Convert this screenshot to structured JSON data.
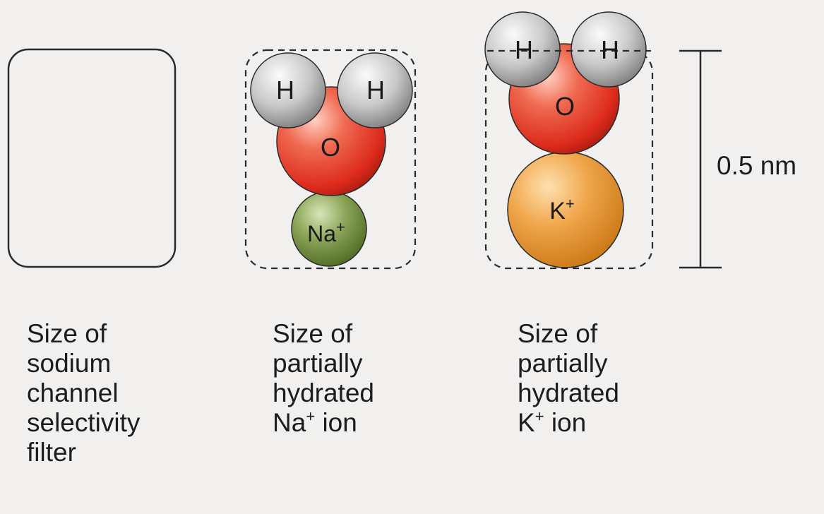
{
  "atoms": {
    "hydrogen": "H",
    "oxygen": "O",
    "sodium_symbol": "Na",
    "potassium_symbol": "K",
    "charge": "+"
  },
  "scale": {
    "label": "0.5 nm"
  },
  "captions": {
    "filter": [
      "Size of",
      "sodium",
      "channel",
      "selectivity",
      "filter"
    ],
    "na_lines": [
      "Size of",
      "partially",
      "hydrated"
    ],
    "na_last_symbol": "Na",
    "na_last_charge": "+",
    "na_last_word": " ion",
    "k_lines": [
      "Size of",
      "partially",
      "hydrated"
    ],
    "k_last_symbol": "K",
    "k_last_charge": "+",
    "k_last_word": " ion"
  },
  "colors": {
    "hydrogen": "#b9b9b9",
    "oxygen": "#e8412a",
    "sodium": "#6f8f3c",
    "potassium": "#e7972f",
    "outline": "#222222"
  }
}
